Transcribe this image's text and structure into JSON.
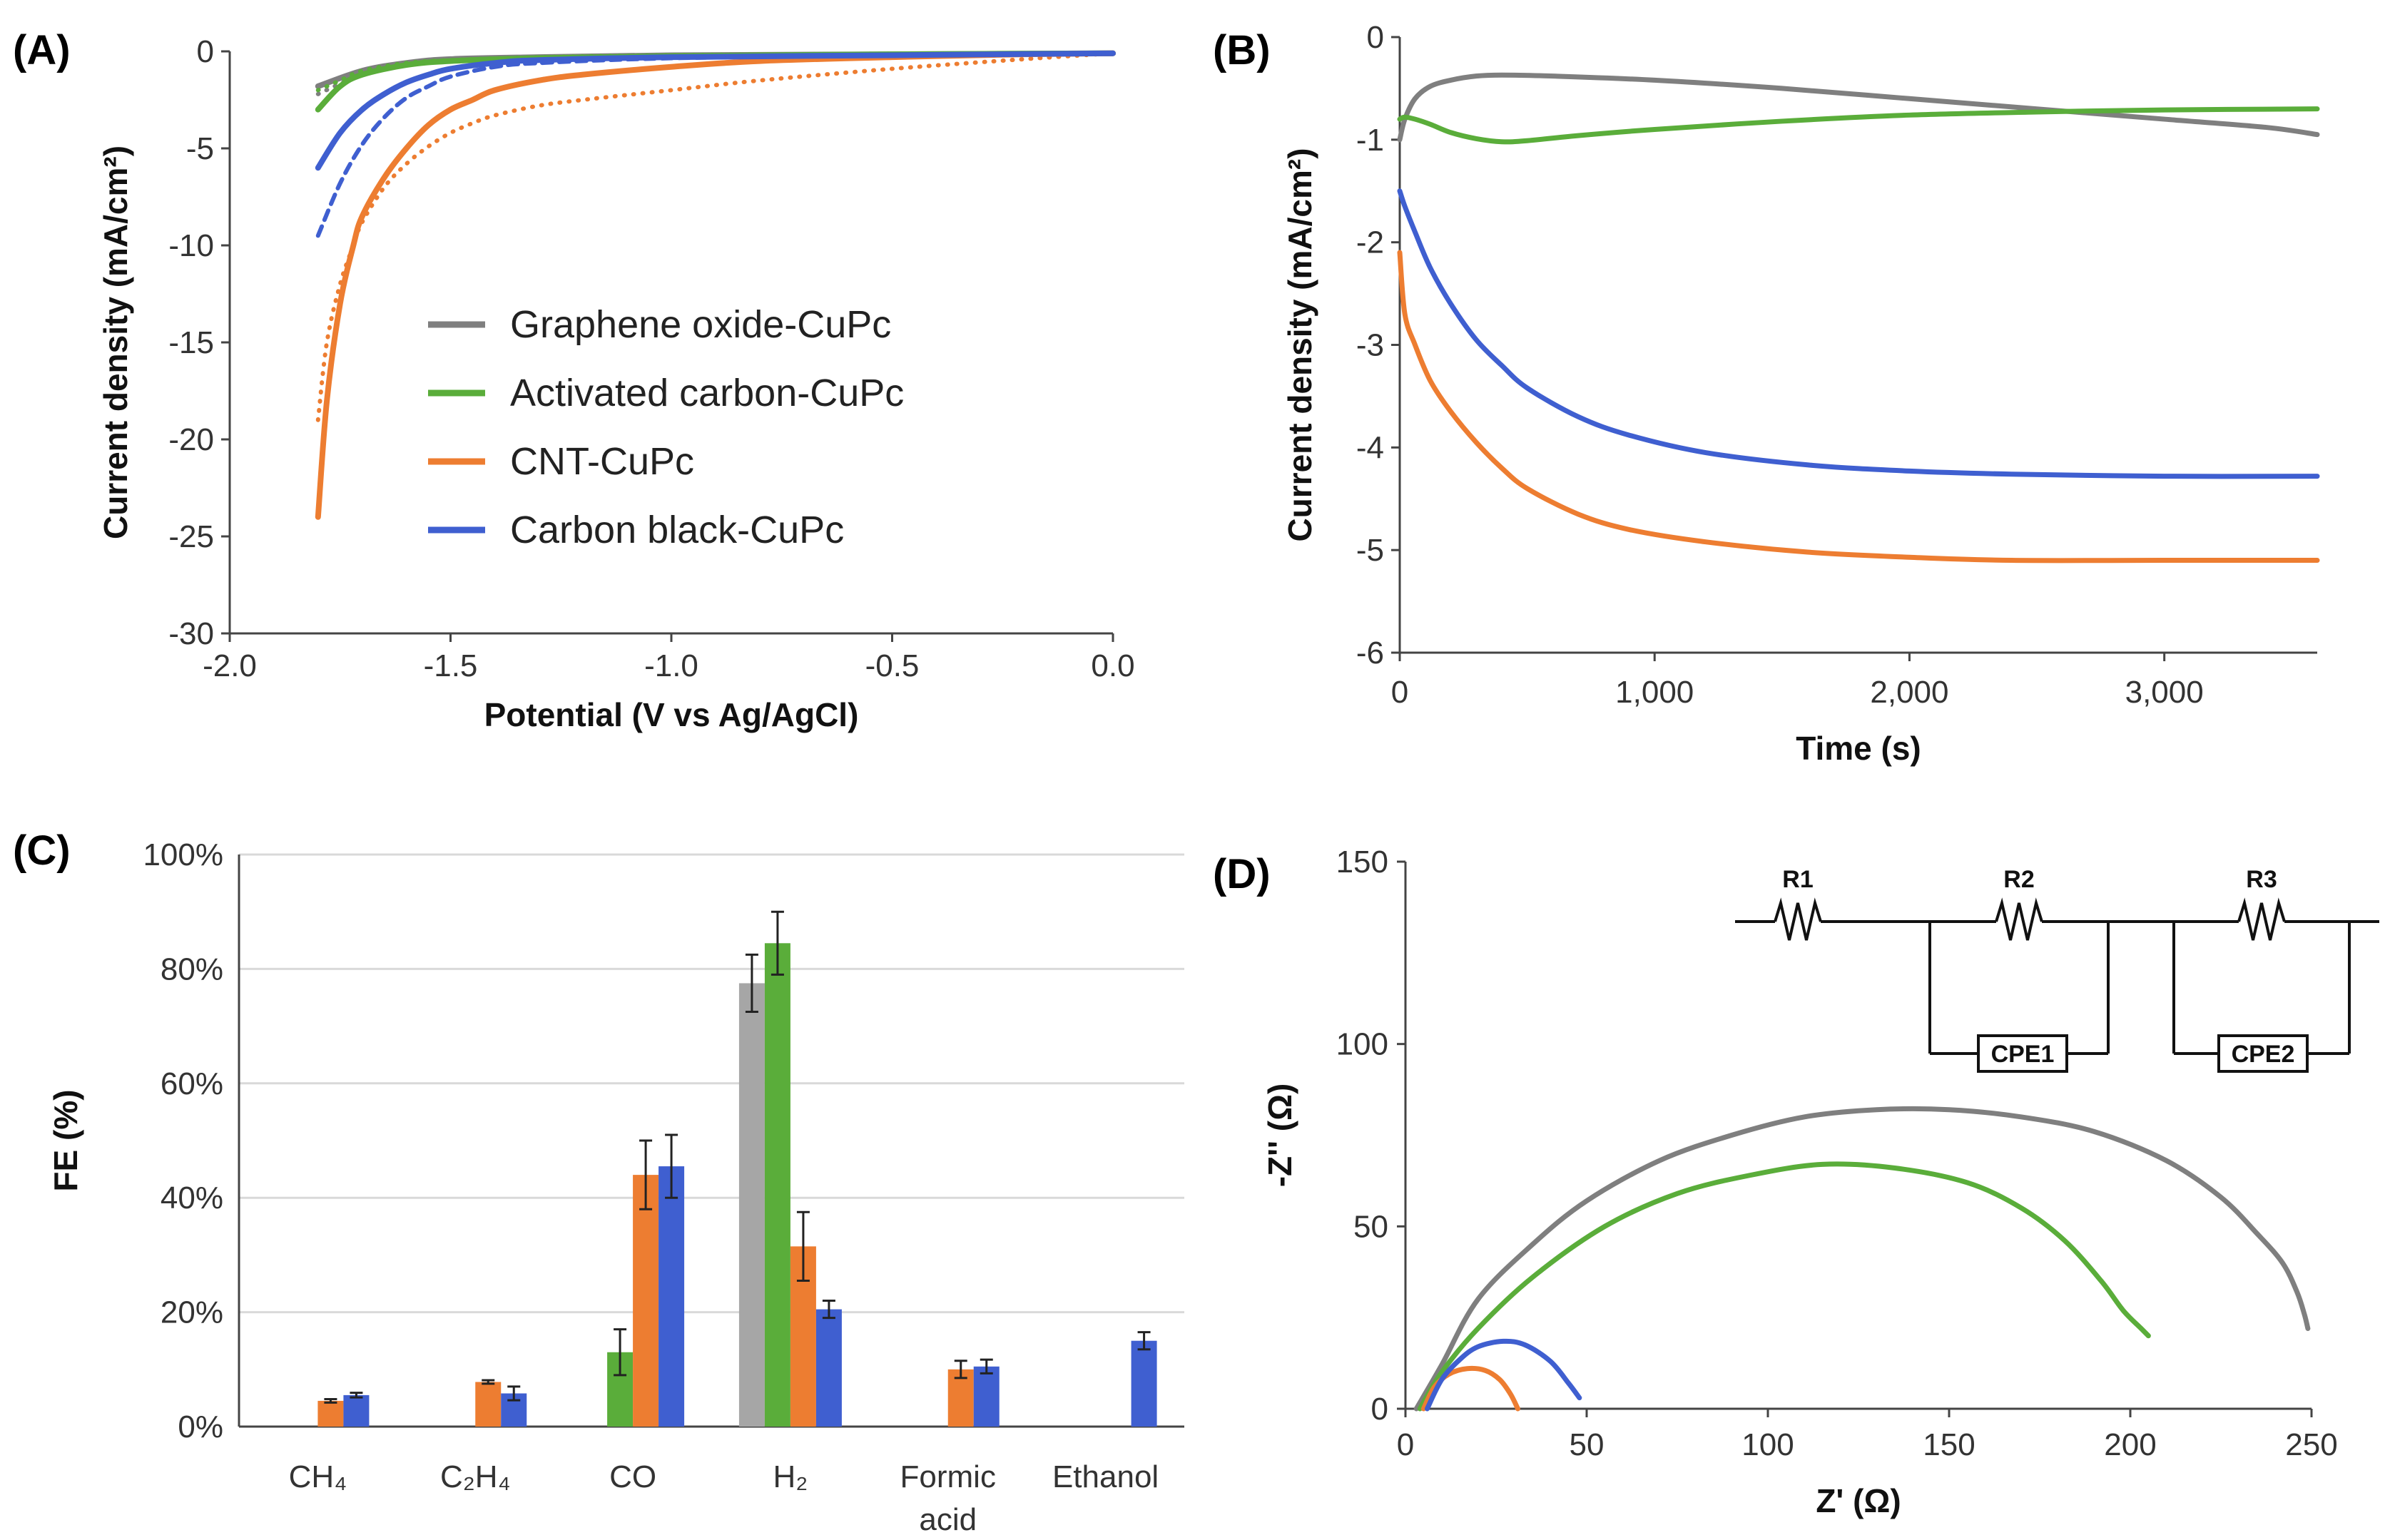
{
  "panels": {
    "A": {
      "label": "(A)"
    },
    "B": {
      "label": "(B)"
    },
    "C": {
      "label": "(C)"
    },
    "D": {
      "label": "(D)"
    }
  },
  "colors": {
    "graphene_oxide": "#7f7f7f",
    "activated_carbon": "#5aad3a",
    "cnt": "#ed7d31",
    "carbon_black": "#3f5fd0",
    "graphene_oxide_bar": "#a6a6a6",
    "grid": "#d9d9d9"
  },
  "chart_data": [
    {
      "id": "A",
      "type": "line",
      "title": "",
      "xlabel": "Potential (V vs Ag/AgCl)",
      "ylabel": "Current density (mA/cm²)",
      "xlim": [
        -2.0,
        0.0
      ],
      "ylim": [
        -30,
        0
      ],
      "xticks": [
        -2.0,
        -1.5,
        -1.0,
        -0.5,
        0.0
      ],
      "xtick_labels": [
        "-2.0",
        "-1.5",
        "-1.0",
        "-0.5",
        "0.0"
      ],
      "yticks": [
        0,
        -5,
        -10,
        -15,
        -20,
        -25,
        -30
      ],
      "ytick_labels": [
        "0",
        "-5",
        "-10",
        "-15",
        "-20",
        "-25",
        "-30"
      ],
      "legend": [
        {
          "name": "Graphene oxide-CuPc",
          "color": "#7f7f7f"
        },
        {
          "name": "Activated carbon-CuPc",
          "color": "#5aad3a"
        },
        {
          "name": "CNT-CuPc",
          "color": "#ed7d31"
        },
        {
          "name": "Carbon black-CuPc",
          "color": "#3f5fd0"
        }
      ],
      "series": [
        {
          "name": "Graphene oxide-CuPc",
          "style": "solid",
          "color": "#7f7f7f",
          "x": [
            -1.8,
            -1.7,
            -1.6,
            -1.5,
            -1.3,
            -1.0,
            -0.5,
            0.0
          ],
          "y": [
            -1.8,
            -1.0,
            -0.6,
            -0.4,
            -0.3,
            -0.2,
            -0.15,
            -0.1
          ]
        },
        {
          "name": "Graphene oxide-CuPc (scan 2)",
          "style": "dotted",
          "color": "#7f7f7f",
          "x": [
            -1.8,
            -1.7,
            -1.6,
            -1.5,
            -1.3,
            -1.0,
            -0.5,
            0.0
          ],
          "y": [
            -2.2,
            -1.2,
            -0.7,
            -0.5,
            -0.35,
            -0.25,
            -0.15,
            -0.1
          ]
        },
        {
          "name": "Activated carbon-CuPc",
          "style": "solid",
          "color": "#5aad3a",
          "x": [
            -1.8,
            -1.75,
            -1.7,
            -1.6,
            -1.5,
            -1.3,
            -1.0,
            -0.5,
            0.0
          ],
          "y": [
            -3.0,
            -1.8,
            -1.2,
            -0.7,
            -0.5,
            -0.35,
            -0.25,
            -0.15,
            -0.1
          ]
        },
        {
          "name": "Activated carbon-CuPc (scan 2)",
          "style": "dotted",
          "color": "#5aad3a",
          "x": [
            -1.8,
            -1.75,
            -1.7,
            -1.6,
            -1.5,
            -1.3,
            -1.0,
            -0.5,
            0.0
          ],
          "y": [
            -2.0,
            -1.5,
            -1.0,
            -0.6,
            -0.45,
            -0.3,
            -0.2,
            -0.12,
            -0.1
          ]
        },
        {
          "name": "CNT-CuPc",
          "style": "solid",
          "color": "#ed7d31",
          "x": [
            -1.8,
            -1.78,
            -1.75,
            -1.72,
            -1.7,
            -1.65,
            -1.6,
            -1.55,
            -1.5,
            -1.45,
            -1.4,
            -1.3,
            -1.2,
            -1.0,
            -0.8,
            -0.5,
            -0.2,
            0.0
          ],
          "y": [
            -24.0,
            -18.0,
            -13.0,
            -10.0,
            -8.5,
            -6.5,
            -5.0,
            -3.8,
            -3.0,
            -2.5,
            -2.0,
            -1.5,
            -1.2,
            -0.8,
            -0.5,
            -0.3,
            -0.15,
            -0.1
          ]
        },
        {
          "name": "CNT-CuPc (scan 2)",
          "style": "dotted",
          "color": "#ed7d31",
          "x": [
            -1.8,
            -1.78,
            -1.75,
            -1.72,
            -1.7,
            -1.65,
            -1.6,
            -1.55,
            -1.5,
            -1.45,
            -1.4,
            -1.3,
            -1.2,
            -1.0,
            -0.8,
            -0.5,
            -0.2,
            0.0
          ],
          "y": [
            -19.0,
            -15.0,
            -12.0,
            -10.0,
            -8.8,
            -7.0,
            -5.8,
            -4.9,
            -4.2,
            -3.7,
            -3.3,
            -2.8,
            -2.5,
            -2.0,
            -1.5,
            -0.9,
            -0.4,
            -0.1
          ]
        },
        {
          "name": "Carbon black-CuPc",
          "style": "solid",
          "color": "#3f5fd0",
          "x": [
            -1.8,
            -1.75,
            -1.7,
            -1.65,
            -1.6,
            -1.55,
            -1.5,
            -1.4,
            -1.3,
            -1.0,
            -0.5,
            0.0
          ],
          "y": [
            -6.0,
            -4.2,
            -3.0,
            -2.2,
            -1.6,
            -1.2,
            -0.9,
            -0.6,
            -0.45,
            -0.3,
            -0.2,
            -0.1
          ]
        },
        {
          "name": "Carbon black-CuPc (scan 2)",
          "style": "dashed",
          "color": "#3f5fd0",
          "x": [
            -1.8,
            -1.75,
            -1.7,
            -1.65,
            -1.6,
            -1.55,
            -1.5,
            -1.4,
            -1.3,
            -1.0,
            -0.5,
            0.0
          ],
          "y": [
            -9.5,
            -6.8,
            -4.8,
            -3.4,
            -2.4,
            -1.8,
            -1.3,
            -0.8,
            -0.6,
            -0.35,
            -0.2,
            -0.1
          ]
        }
      ]
    },
    {
      "id": "B",
      "type": "line",
      "title": "",
      "xlabel": "Time (s)",
      "ylabel": "Current density (mA/cm²)",
      "xlim": [
        0,
        3600
      ],
      "ylim": [
        -6,
        0
      ],
      "xticks": [
        0,
        1000,
        2000,
        3000
      ],
      "xtick_labels": [
        "0",
        "1,000",
        "2,000",
        "3,000"
      ],
      "yticks": [
        0,
        -1,
        -2,
        -3,
        -4,
        -5,
        -6
      ],
      "ytick_labels": [
        "0",
        "-1",
        "-2",
        "-3",
        "-4",
        "-5",
        "-6"
      ],
      "series": [
        {
          "name": "Graphene oxide-CuPc",
          "color": "#7f7f7f",
          "x": [
            0,
            20,
            60,
            120,
            200,
            300,
            400,
            600,
            1000,
            1500,
            2000,
            2500,
            3000,
            3400,
            3600
          ],
          "y": [
            -1.0,
            -0.8,
            -0.6,
            -0.48,
            -0.42,
            -0.38,
            -0.37,
            -0.38,
            -0.42,
            -0.5,
            -0.6,
            -0.7,
            -0.8,
            -0.88,
            -0.95
          ]
        },
        {
          "name": "Activated carbon-CuPc",
          "color": "#5aad3a",
          "x": [
            0,
            20,
            60,
            120,
            200,
            300,
            400,
            500,
            700,
            1000,
            1500,
            2000,
            2500,
            3000,
            3600
          ],
          "y": [
            -0.8,
            -0.78,
            -0.8,
            -0.85,
            -0.93,
            -0.99,
            -1.02,
            -1.01,
            -0.96,
            -0.9,
            -0.82,
            -0.76,
            -0.73,
            -0.71,
            -0.7
          ]
        },
        {
          "name": "CNT-CuPc",
          "color": "#ed7d31",
          "x": [
            0,
            20,
            60,
            120,
            200,
            300,
            400,
            500,
            700,
            900,
            1200,
            1600,
            2000,
            2400,
            3000,
            3600
          ],
          "y": [
            -2.1,
            -2.7,
            -3.0,
            -3.35,
            -3.65,
            -3.95,
            -4.2,
            -4.4,
            -4.65,
            -4.8,
            -4.92,
            -5.02,
            -5.07,
            -5.1,
            -5.1,
            -5.1
          ]
        },
        {
          "name": "Carbon black-CuPc",
          "color": "#3f5fd0",
          "x": [
            0,
            20,
            60,
            120,
            200,
            300,
            400,
            500,
            700,
            900,
            1200,
            1600,
            2000,
            2400,
            3000,
            3600
          ],
          "y": [
            -1.5,
            -1.65,
            -1.9,
            -2.25,
            -2.6,
            -2.95,
            -3.2,
            -3.42,
            -3.7,
            -3.88,
            -4.05,
            -4.17,
            -4.23,
            -4.26,
            -4.28,
            -4.28
          ]
        }
      ]
    },
    {
      "id": "C",
      "type": "bar",
      "title": "",
      "xlabel": "",
      "ylabel": "FE (%)",
      "ylim": [
        0,
        100
      ],
      "yticks": [
        0,
        20,
        40,
        60,
        80,
        100
      ],
      "ytick_labels": [
        "0%",
        "20%",
        "40%",
        "60%",
        "80%",
        "100%"
      ],
      "categories": [
        "CH₄",
        "C₂H₄",
        "CO",
        "H₂",
        "Formic acid",
        "Ethanol"
      ],
      "category_lines": [
        [
          "CH₄"
        ],
        [
          "C₂H₄"
        ],
        [
          "CO"
        ],
        [
          "H₂"
        ],
        [
          "Formic",
          "acid"
        ],
        [
          "Ethanol"
        ]
      ],
      "series": [
        {
          "name": "Graphene oxide-CuPc",
          "color": "#a6a6a6",
          "values": [
            0,
            0,
            0,
            77.5,
            0,
            0
          ],
          "errors": [
            0,
            0,
            0,
            5.0,
            0,
            0
          ]
        },
        {
          "name": "Activated carbon-CuPc",
          "color": "#5aad3a",
          "values": [
            0,
            0,
            13.0,
            84.5,
            0,
            0
          ],
          "errors": [
            0,
            0,
            4.0,
            5.5,
            0,
            0
          ]
        },
        {
          "name": "CNT-CuPc",
          "color": "#ed7d31",
          "values": [
            4.5,
            7.8,
            44.0,
            31.5,
            10.0,
            0
          ],
          "errors": [
            0.3,
            0.3,
            6.0,
            6.0,
            1.5,
            0
          ]
        },
        {
          "name": "Carbon black-CuPc",
          "color": "#3f5fd0",
          "values": [
            5.5,
            5.8,
            45.5,
            20.5,
            10.5,
            15.0
          ],
          "errors": [
            0.4,
            1.2,
            5.5,
            1.5,
            1.2,
            1.5
          ]
        }
      ]
    },
    {
      "id": "D",
      "type": "line",
      "title": "",
      "xlabel": "Z' (Ω)",
      "ylabel": "-Z'' (Ω)",
      "xlim": [
        0,
        250
      ],
      "ylim": [
        0,
        150
      ],
      "xticks": [
        0,
        50,
        100,
        150,
        200,
        250
      ],
      "xtick_labels": [
        "0",
        "50",
        "100",
        "150",
        "200",
        "250"
      ],
      "yticks": [
        0,
        50,
        100,
        150
      ],
      "ytick_labels": [
        "0",
        "50",
        "100",
        "150"
      ],
      "circuit_labels": {
        "r1": "R1",
        "r2": "R2",
        "r3": "R3",
        "cpe1": "CPE1",
        "cpe2": "CPE2"
      },
      "series": [
        {
          "name": "Graphene oxide-CuPc",
          "color": "#7f7f7f",
          "x": [
            3,
            10,
            20,
            35,
            50,
            70,
            90,
            110,
            130,
            150,
            170,
            190,
            210,
            225,
            235,
            242,
            246,
            248,
            249
          ],
          "y": [
            0,
            12,
            30,
            45,
            57,
            68,
            75,
            80,
            82,
            82,
            80,
            76,
            68,
            58,
            48,
            40,
            32,
            26,
            22
          ]
        },
        {
          "name": "Activated carbon-CuPc",
          "color": "#5aad3a",
          "x": [
            4,
            10,
            20,
            35,
            55,
            75,
            95,
            115,
            135,
            155,
            170,
            182,
            192,
            198,
            203,
            205
          ],
          "y": [
            0,
            10,
            22,
            36,
            50,
            59,
            64,
            67,
            66,
            62,
            55,
            46,
            35,
            27,
            22,
            20
          ]
        },
        {
          "name": "CNT-CuPc",
          "color": "#ed7d31",
          "x": [
            5,
            8,
            12,
            17,
            22,
            26,
            29,
            31
          ],
          "y": [
            0,
            6,
            9.5,
            11,
            10.5,
            8,
            4,
            0
          ]
        },
        {
          "name": "Carbon black-CuPc",
          "color": "#3f5fd0",
          "x": [
            6,
            10,
            15,
            20,
            27,
            33,
            40,
            45,
            48
          ],
          "y": [
            0,
            8,
            13.5,
            17,
            18.5,
            17.5,
            13,
            7,
            3
          ]
        }
      ]
    }
  ]
}
